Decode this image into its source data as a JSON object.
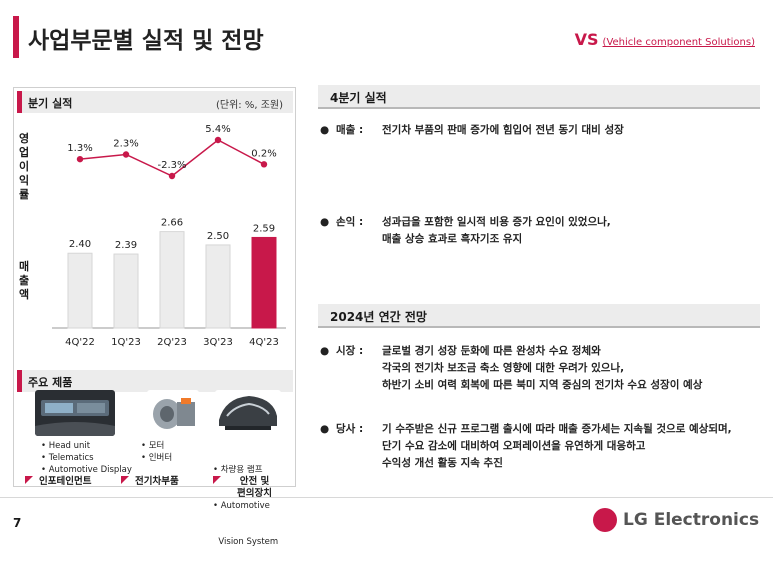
{
  "header": {
    "title": "사업부문별 실적 및 전망",
    "division_code": "VS",
    "division_name": "(Vehicle component Solutions)"
  },
  "left_panel": {
    "quarterly_title": "분기 실적",
    "unit": "(단위: %, 조원)",
    "op_margin_label": "영업이익률",
    "revenue_label": "매출액",
    "products_title": "주요 제품",
    "products": [
      {
        "items": [
          "• Head unit",
          "• Telematics",
          "• Automotive Display"
        ],
        "tag": "인포테인먼트"
      },
      {
        "items": [
          "• 모터",
          "• 인버터"
        ],
        "tag": "전기차부품"
      },
      {
        "items": [
          "• 차량용 램프",
          "• Automotive",
          "  Vision System"
        ],
        "tag_line1": "안전 및",
        "tag_line2": "편의장치"
      }
    ]
  },
  "chart_data": {
    "type": "bar",
    "categories": [
      "4Q'22",
      "1Q'23",
      "2Q'23",
      "3Q'23",
      "4Q'23"
    ],
    "revenue": [
      2.4,
      2.39,
      2.66,
      2.5,
      2.59
    ],
    "revenue_labels": [
      "2.40",
      "2.39",
      "2.66",
      "2.50",
      "2.59"
    ],
    "op_margin": [
      1.3,
      2.3,
      -2.3,
      5.4,
      0.2
    ],
    "op_margin_labels": [
      "1.3%",
      "2.3%",
      "-2.3%",
      "5.4%",
      "0.2%"
    ],
    "bar_color": "#ececec",
    "highlight_color": "#c8184a",
    "line_color": "#c8184a"
  },
  "right": {
    "q4_title": "4분기 실적",
    "sales_key": "매출 :",
    "sales_text": "전기차 부품의 판매 증가에 힘입어 전년 동기 대비 성장",
    "profit_key": "손익 :",
    "profit_line1": "성과급을 포함한 일시적 비용 증가 요인이 있었으나,",
    "profit_line2": "매출 상승 효과로 흑자기조 유지",
    "outlook_title": "2024년 연간 전망",
    "market_key": "시장 :",
    "market_line1": "글로벌 경기 성장 둔화에 따른 완성차 수요 정체와",
    "market_line2": "각국의 전기차 보조금 축소 영향에 대한 우려가 있으나,",
    "market_line3": "하반기 소비 여력 회복에 따른 북미 지역 중심의 전기차 수요 성장이 예상",
    "company_key": "당사 :",
    "company_line1": "기 수주받은 신규 프로그램 출시에 따라 매출 증가세는 지속될 것으로 예상되며,",
    "company_line2": "단기 수요 감소에 대비하여 오퍼레이션을 유연하게 대응하고",
    "company_line3": "수익성 개선 활동 지속 추진"
  },
  "footer": {
    "page_number": "7",
    "logo_text": "LG Electronics"
  }
}
